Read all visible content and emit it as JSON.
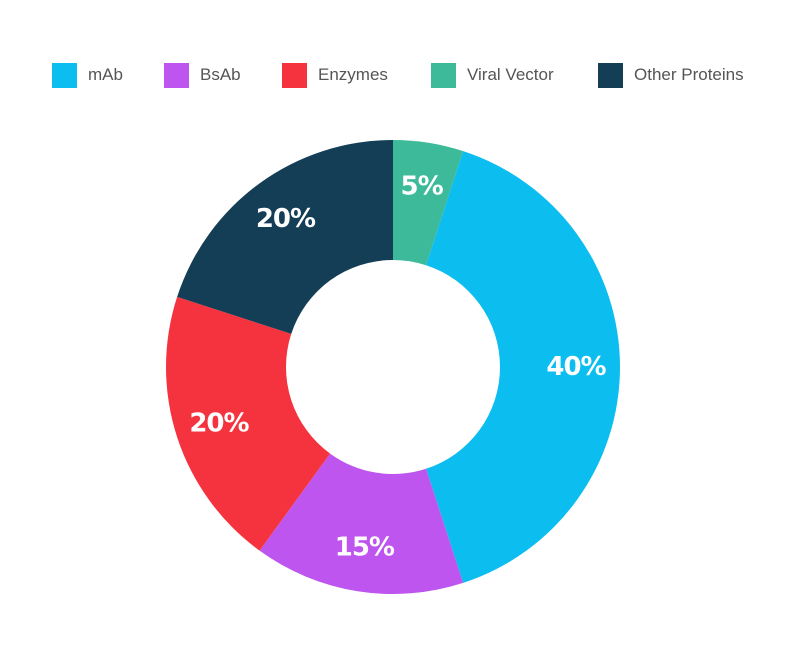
{
  "chart_data": {
    "type": "pie",
    "variant": "donut",
    "start_angle_deg": 0,
    "direction": "clockwise",
    "legend_placement": "top",
    "slices": [
      {
        "name": "Viral Vector",
        "value": 5,
        "label": "5%",
        "color": "#3dba9a"
      },
      {
        "name": "mAb",
        "value": 40,
        "label": "40%",
        "color": "#0cbdf0"
      },
      {
        "name": "BsAb",
        "value": 15,
        "label": "15%",
        "color": "#bd55ee"
      },
      {
        "name": "Enzymes",
        "value": 20,
        "label": "20%",
        "color": "#f5333f"
      },
      {
        "name": "Other Proteins",
        "value": 20,
        "label": "20%",
        "color": "#143d56"
      }
    ],
    "legend_order": [
      "mAb",
      "BsAb",
      "Enzymes",
      "Viral Vector",
      "Other Proteins"
    ]
  }
}
